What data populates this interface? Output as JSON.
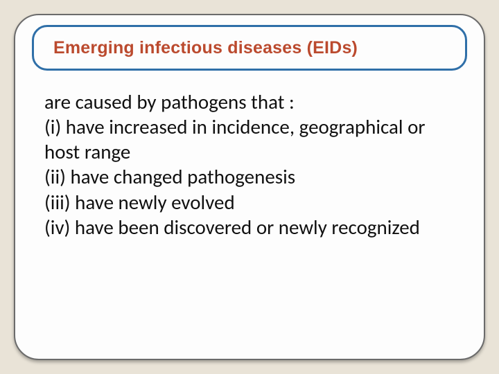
{
  "slide": {
    "background_color": "#e9e3d7",
    "card": {
      "background_color": "#fdfdfd",
      "border_color": "#6b6b6b",
      "border_width": 2,
      "border_radius": 36,
      "shadow_color": "rgba(0,0,0,0.3)"
    },
    "title_box": {
      "border_color": "#2f6fa8",
      "border_width": 3,
      "border_radius": 22,
      "background_color": "#fdfdfd"
    },
    "title": {
      "text": "Emerging infectious diseases (EIDs)",
      "font_family": "Verdana",
      "font_weight": 700,
      "font_size_pt": 19,
      "color": "#bb4a2e"
    },
    "body": {
      "font_family": "Calibri",
      "font_size_pt": 22,
      "color": "#101010",
      "line_height": 1.22,
      "lines": [
        "are caused by pathogens that :",
        "(i) have increased in incidence, geographical or  host range",
        "(ii) have changed pathogenesis",
        "(iii) have newly evolved",
        "(iv) have been discovered or newly recognized"
      ]
    }
  }
}
